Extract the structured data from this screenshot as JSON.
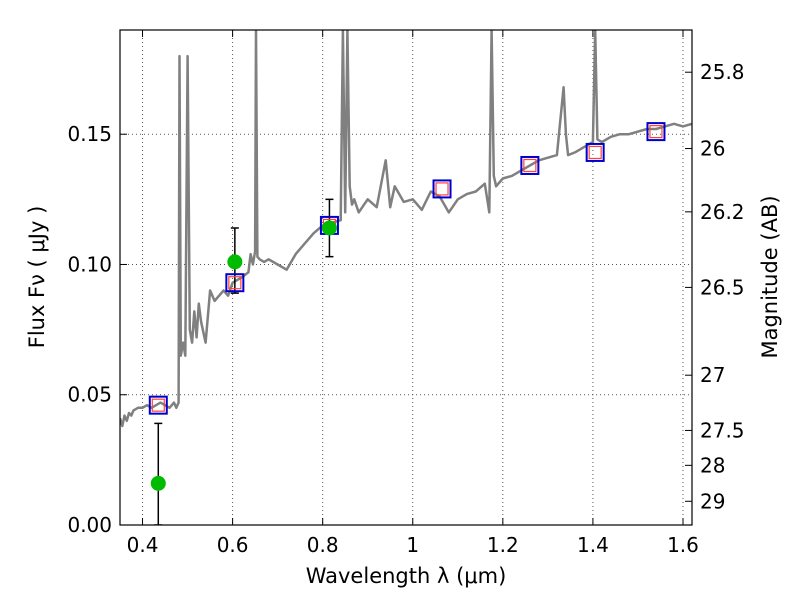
{
  "chart_data": {
    "type": "scatter",
    "title": "",
    "xlabel": "Wavelength  λ (μm)",
    "ylabel": "Flux  Fν  ( μJy )",
    "ylabel_right": "Magnitude (AB)",
    "xlim": [
      0.35,
      1.62
    ],
    "ylim": [
      0.0,
      0.19
    ],
    "grid": true,
    "x_ticks": [
      0.4,
      0.6,
      0.8,
      1.0,
      1.2,
      1.4,
      1.6
    ],
    "x_tick_labels": [
      "0.4",
      "0.6",
      "0.8",
      "1",
      "1.2",
      "1.4",
      "1.6"
    ],
    "y_ticks": [
      0.0,
      0.05,
      0.1,
      0.15
    ],
    "y_tick_labels": [
      "0.00",
      "0.05",
      "0.10",
      "0.15"
    ],
    "right_ticks": [
      {
        "label": "25.8",
        "flux": 0.1738
      },
      {
        "label": "26",
        "flux": 0.1445
      },
      {
        "label": "26.2",
        "flux": 0.1202
      },
      {
        "label": "26.5",
        "flux": 0.0912
      },
      {
        "label": "27",
        "flux": 0.0575
      },
      {
        "label": "27.5",
        "flux": 0.0363
      },
      {
        "label": "28",
        "flux": 0.0229
      },
      {
        "label": "29",
        "flux": 0.0091
      }
    ],
    "colors": {
      "model": "#808080",
      "model_flux": "#0000cc",
      "model_flux_inner": "#ff4040",
      "observed": "#00bb00",
      "errorbar": "#000000",
      "grid": "#555555"
    },
    "series": [
      {
        "type": "line",
        "x": [
          0.35,
          0.355,
          0.36,
          0.365,
          0.37,
          0.375,
          0.38,
          0.39,
          0.4,
          0.41,
          0.42,
          0.43,
          0.44,
          0.45,
          0.46,
          0.47,
          0.475,
          0.48,
          0.482,
          0.485,
          0.49,
          0.495,
          0.5,
          0.505,
          0.51,
          0.515,
          0.52,
          0.525,
          0.53,
          0.54,
          0.55,
          0.56,
          0.57,
          0.58,
          0.59,
          0.6,
          0.62,
          0.635,
          0.64,
          0.645,
          0.65,
          0.652,
          0.655,
          0.66,
          0.67,
          0.68,
          0.7,
          0.72,
          0.74,
          0.76,
          0.78,
          0.8,
          0.82,
          0.84,
          0.845,
          0.85,
          0.855,
          0.86,
          0.865,
          0.87,
          0.88,
          0.9,
          0.92,
          0.94,
          0.95,
          0.96,
          0.98,
          1.0,
          1.02,
          1.04,
          1.06,
          1.08,
          1.1,
          1.12,
          1.14,
          1.16,
          1.17,
          1.175,
          1.18,
          1.185,
          1.19,
          1.2,
          1.22,
          1.24,
          1.26,
          1.28,
          1.3,
          1.32,
          1.335,
          1.34,
          1.345,
          1.36,
          1.38,
          1.4,
          1.405,
          1.41,
          1.42,
          1.44,
          1.46,
          1.48,
          1.5,
          1.52,
          1.54,
          1.56,
          1.58,
          1.6,
          1.62
        ],
        "y": [
          0.041,
          0.038,
          0.042,
          0.04,
          0.043,
          0.042,
          0.044,
          0.045,
          0.045,
          0.046,
          0.045,
          0.046,
          0.047,
          0.046,
          0.045,
          0.047,
          0.045,
          0.047,
          0.18,
          0.065,
          0.07,
          0.065,
          0.18,
          0.075,
          0.07,
          0.082,
          0.072,
          0.085,
          0.078,
          0.07,
          0.09,
          0.086,
          0.088,
          0.09,
          0.088,
          0.093,
          0.095,
          0.097,
          0.104,
          0.1,
          0.105,
          0.19,
          0.103,
          0.102,
          0.101,
          0.102,
          0.1,
          0.098,
          0.104,
          0.108,
          0.112,
          0.115,
          0.116,
          0.117,
          0.19,
          0.12,
          0.19,
          0.13,
          0.123,
          0.125,
          0.12,
          0.125,
          0.122,
          0.14,
          0.122,
          0.13,
          0.124,
          0.125,
          0.121,
          0.128,
          0.126,
          0.12,
          0.125,
          0.127,
          0.128,
          0.131,
          0.12,
          0.19,
          0.134,
          0.13,
          0.131,
          0.133,
          0.134,
          0.136,
          0.138,
          0.14,
          0.141,
          0.142,
          0.168,
          0.15,
          0.142,
          0.143,
          0.145,
          0.147,
          0.19,
          0.148,
          0.147,
          0.149,
          0.15,
          0.15,
          0.151,
          0.152,
          0.152,
          0.153,
          0.154,
          0.153,
          0.154
        ]
      },
      {
        "type": "model_flux_squares",
        "x": [
          0.435,
          0.605,
          0.815,
          1.065,
          1.26,
          1.405,
          1.54
        ],
        "y": [
          0.046,
          0.093,
          0.115,
          0.129,
          0.138,
          0.143,
          0.151
        ]
      },
      {
        "type": "observed_points",
        "x": [
          0.435,
          0.605,
          0.815
        ],
        "y": [
          0.016,
          0.101,
          0.114
        ],
        "err_low": [
          0.016,
          0.012,
          0.011
        ],
        "err_high": [
          0.023,
          0.013,
          0.011
        ]
      }
    ]
  }
}
